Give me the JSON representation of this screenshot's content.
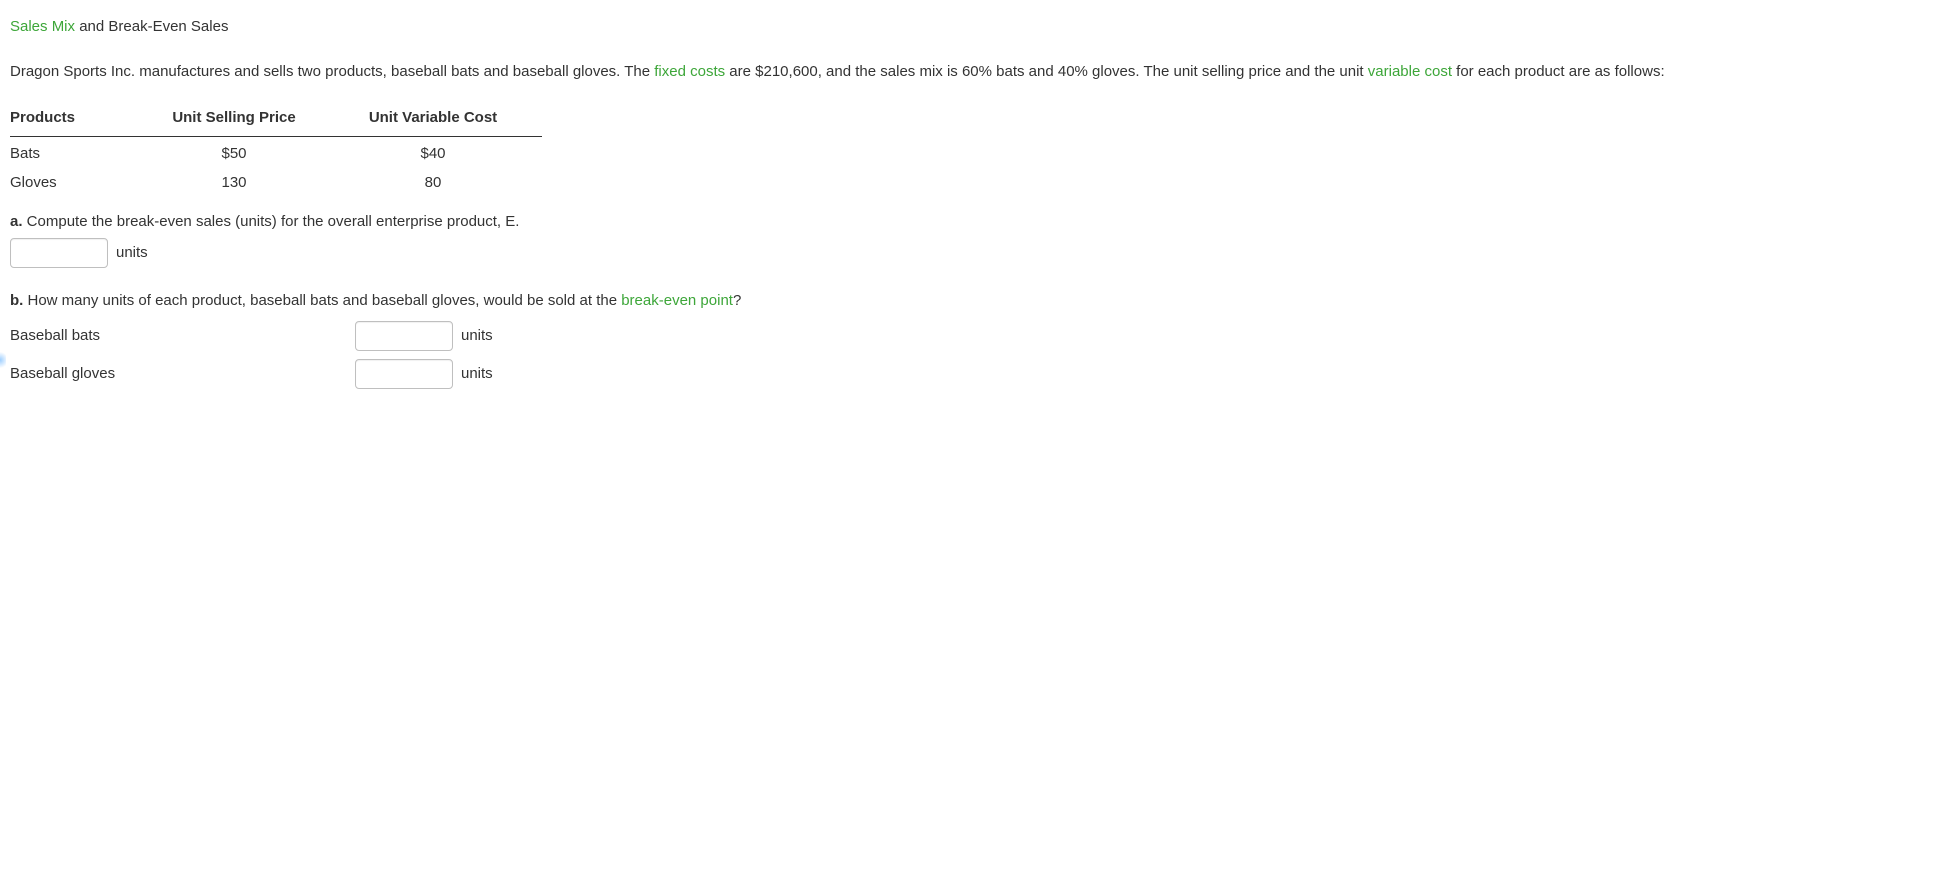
{
  "heading": {
    "term": "Sales Mix",
    "rest": " and Break-Even Sales"
  },
  "intro": {
    "pre_fixed": "Dragon Sports Inc. manufactures and sells two products, baseball bats and baseball gloves. The ",
    "fixed_term": "fixed costs",
    "mid": " are $210,600, and the sales mix is 60% bats and 40% gloves. The unit selling price and the unit ",
    "var_term": "variable cost",
    "post": " for each product are as follows:"
  },
  "table": {
    "headers": {
      "products": "Products",
      "price": "Unit Selling Price",
      "varcost": "Unit Variable Cost"
    },
    "rows": [
      {
        "product": "Bats",
        "price": "$50",
        "varcost": "$40"
      },
      {
        "product": "Gloves",
        "price": "130",
        "varcost": "80"
      }
    ]
  },
  "question_a": {
    "label": "a.",
    "text": "  Compute the break-even sales (units) for the overall enterprise product, E.",
    "units_label": "units"
  },
  "question_b": {
    "label": "b.",
    "text_pre": "  How many units of each product, baseball bats and baseball gloves, would be sold at the ",
    "term": "break-even point",
    "text_post": "?",
    "rows": [
      {
        "label": "Baseball bats",
        "units_label": "units"
      },
      {
        "label": "Baseball gloves",
        "units_label": "units"
      }
    ]
  }
}
